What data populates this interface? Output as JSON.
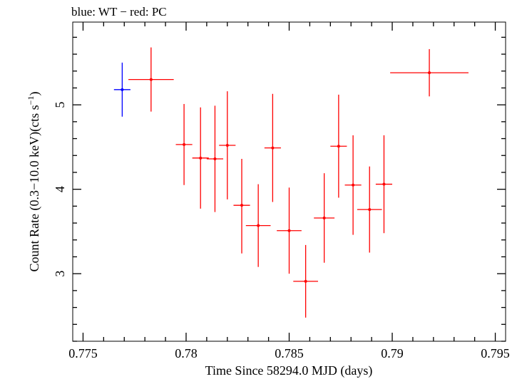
{
  "chart_data": {
    "type": "scatter",
    "title": "blue: WT − red: PC",
    "xlabel": "Time Since 58294.0 MJD (days)",
    "ylabel_main": "Count Rate (0.3−10.0 keV)(cts s",
    "ylabel_sup": "−1",
    "ylabel_end": ")",
    "xlim": [
      0.7745,
      0.7955
    ],
    "ylim": [
      2.2,
      5.98
    ],
    "x_ticks": [
      0.775,
      0.78,
      0.785,
      0.79,
      0.795
    ],
    "x_tick_labels": [
      "0.775",
      "0.78",
      "0.785",
      "0.79",
      "0.795"
    ],
    "y_ticks": [
      3,
      4,
      5
    ],
    "y_tick_labels": [
      "3",
      "4",
      "5"
    ],
    "grid": false,
    "series": [
      {
        "color": "#0000ff",
        "points": [
          {
            "x": 0.7769,
            "y": 5.18,
            "xerr": 0.0004,
            "yerr_lo": 0.32,
            "yerr_hi": 0.32
          }
        ]
      },
      {
        "color": "#ff0000",
        "points": [
          {
            "x": 0.7783,
            "y": 5.3,
            "xerr": 0.0011,
            "yerr_lo": 0.38,
            "yerr_hi": 0.38
          },
          {
            "x": 0.7799,
            "y": 4.53,
            "xerr": 0.0004,
            "yerr_lo": 0.48,
            "yerr_hi": 0.48
          },
          {
            "x": 0.7807,
            "y": 4.37,
            "xerr": 0.0004,
            "yerr_lo": 0.6,
            "yerr_hi": 0.6
          },
          {
            "x": 0.7814,
            "y": 4.36,
            "xerr": 0.0004,
            "yerr_lo": 0.63,
            "yerr_hi": 0.63
          },
          {
            "x": 0.782,
            "y": 4.52,
            "xerr": 0.0004,
            "yerr_lo": 0.64,
            "yerr_hi": 0.64
          },
          {
            "x": 0.7827,
            "y": 3.81,
            "xerr": 0.0004,
            "yerr_lo": 0.57,
            "yerr_hi": 0.55
          },
          {
            "x": 0.7835,
            "y": 3.57,
            "xerr": 0.0006,
            "yerr_lo": 0.49,
            "yerr_hi": 0.49
          },
          {
            "x": 0.7842,
            "y": 4.49,
            "xerr": 0.0004,
            "yerr_lo": 0.64,
            "yerr_hi": 0.64
          },
          {
            "x": 0.785,
            "y": 3.51,
            "xerr": 0.0006,
            "yerr_lo": 0.51,
            "yerr_hi": 0.51
          },
          {
            "x": 0.7858,
            "y": 2.91,
            "xerr": 0.0006,
            "yerr_lo": 0.43,
            "yerr_hi": 0.43
          },
          {
            "x": 0.7867,
            "y": 3.66,
            "xerr": 0.0005,
            "yerr_lo": 0.53,
            "yerr_hi": 0.53
          },
          {
            "x": 0.7874,
            "y": 4.51,
            "xerr": 0.0004,
            "yerr_lo": 0.61,
            "yerr_hi": 0.61
          },
          {
            "x": 0.7881,
            "y": 4.05,
            "xerr": 0.0004,
            "yerr_lo": 0.59,
            "yerr_hi": 0.59
          },
          {
            "x": 0.7889,
            "y": 3.76,
            "xerr": 0.0006,
            "yerr_lo": 0.51,
            "yerr_hi": 0.51
          },
          {
            "x": 0.7896,
            "y": 4.06,
            "xerr": 0.0004,
            "yerr_lo": 0.58,
            "yerr_hi": 0.58
          },
          {
            "x": 0.7918,
            "y": 5.38,
            "xerr": 0.0019,
            "yerr_lo": 0.28,
            "yerr_hi": 0.28
          }
        ]
      }
    ]
  }
}
